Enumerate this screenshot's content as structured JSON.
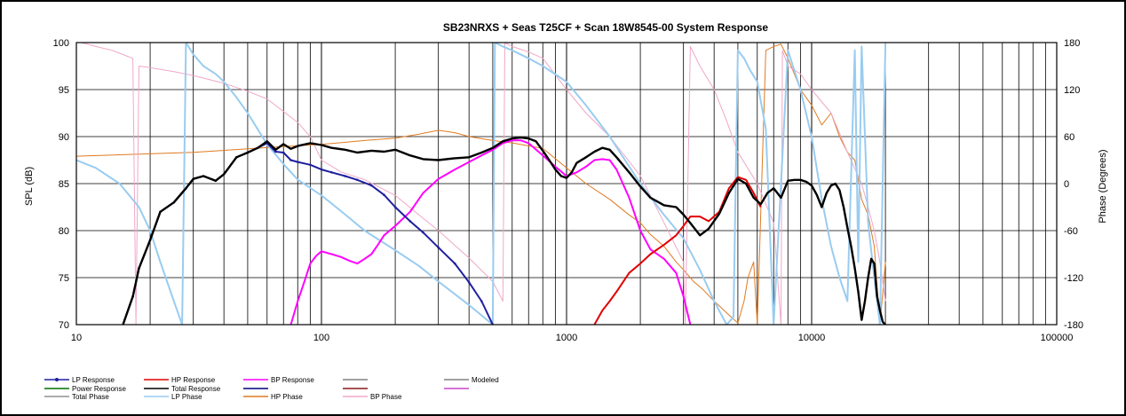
{
  "chart_data": {
    "type": "line",
    "title": "SB23NRXS  + Seas T25CF + Scan 18W8545-00   System Response",
    "xlabel": "",
    "ylabel": "SPL (dB)",
    "y2label": "Phase (Degrees)",
    "xscale": "log",
    "xlim": [
      10,
      100000
    ],
    "ylim": [
      70,
      100
    ],
    "y2lim": [
      -180,
      180
    ],
    "x_ticks": [
      "10",
      "100",
      "1000",
      "10000",
      "100000"
    ],
    "y_ticks": [
      "70",
      "75",
      "80",
      "85",
      "90",
      "95",
      "100"
    ],
    "y2_ticks": [
      "-180",
      "-120",
      "-60",
      "0",
      "60",
      "120",
      "180"
    ],
    "grid": true,
    "legend_position": "bottom",
    "legend": [
      {
        "label": "LP Response",
        "color": "#1f1fa0",
        "marker": true
      },
      {
        "label": "HP Response",
        "color": "#e00000"
      },
      {
        "label": "BP Response",
        "color": "#ff00ff"
      },
      {
        "label": "",
        "color": "#808080"
      },
      {
        "label": "Modeled",
        "color": "#808080"
      },
      {
        "label": "Power Response",
        "color": "#007000"
      },
      {
        "label": "Total Response",
        "color": "#000000"
      },
      {
        "label": "",
        "color": "#000080"
      },
      {
        "label": "",
        "color": "#8b1a1a"
      },
      {
        "label": "",
        "color": "#cc44cc"
      },
      {
        "label": "Total Phase",
        "color": "#909090"
      },
      {
        "label": "LP Phase",
        "color": "#99ccf0"
      },
      {
        "label": "HP Phase",
        "color": "#e07a20"
      },
      {
        "label": "BP Phase",
        "color": "#f0a8c8"
      }
    ],
    "series": [
      {
        "name": "Total Response",
        "axis": "left",
        "color": "#000000",
        "width": 2.4,
        "x": [
          15.5,
          17,
          18,
          20,
          22,
          25,
          28,
          30,
          33,
          37,
          40,
          45,
          50,
          55,
          60,
          65,
          70,
          75,
          80,
          90,
          100,
          110,
          125,
          140,
          160,
          180,
          200,
          230,
          260,
          300,
          350,
          400,
          450,
          500,
          550,
          600,
          650,
          700,
          750,
          800,
          850,
          900,
          950,
          1000,
          1050,
          1100,
          1200,
          1300,
          1400,
          1500,
          1600,
          1800,
          2000,
          2200,
          2500,
          2800,
          3000,
          3200,
          3500,
          3800,
          4200,
          4600,
          5000,
          5400,
          5800,
          6200,
          6600,
          7000,
          7500,
          8000,
          8500,
          9000,
          9500,
          10000,
          10500,
          11000,
          11500,
          12000,
          12500,
          13000,
          13500,
          14000,
          14500,
          15000,
          15500,
          16000,
          16500,
          17000,
          17500,
          18000,
          18500,
          19000,
          19500,
          20000
        ],
        "y": [
          70,
          73,
          76,
          79,
          82,
          83,
          84.5,
          85.5,
          85.8,
          85.3,
          86,
          87.8,
          88.3,
          88.8,
          89.5,
          88.6,
          89.2,
          88.7,
          89,
          89.3,
          89.1,
          88.8,
          88.6,
          88.3,
          88.5,
          88.4,
          88.6,
          88,
          87.6,
          87.5,
          87.7,
          87.8,
          88.3,
          88.8,
          89.5,
          89.8,
          89.9,
          89.8,
          89.5,
          88.5,
          87.5,
          86.5,
          85.8,
          85.6,
          86.2,
          87.2,
          87.8,
          88.4,
          88.8,
          88.6,
          87.8,
          86.2,
          84.7,
          83.5,
          82.7,
          82.5,
          81.7,
          80.8,
          79.5,
          80.2,
          81.8,
          84,
          85.5,
          85,
          83.5,
          82.8,
          84,
          84.5,
          83.5,
          85.3,
          85.4,
          85.4,
          85.2,
          84.8,
          83.8,
          82.5,
          84,
          84.8,
          85,
          84.3,
          82.5,
          80.3,
          78.3,
          76,
          73.5,
          70.5,
          72.5,
          75,
          77,
          76.5,
          73,
          71.5,
          70.3,
          70
        ]
      },
      {
        "name": "LP Response",
        "axis": "left",
        "color": "#1f1fa0",
        "width": 2,
        "x": [
          15.5,
          17,
          18,
          20,
          22,
          25,
          28,
          30,
          33,
          37,
          40,
          45,
          50,
          55,
          60,
          65,
          70,
          75,
          80,
          90,
          100,
          110,
          125,
          140,
          160,
          180,
          200,
          230,
          260,
          300,
          350,
          400,
          450,
          500
        ],
        "y": [
          70,
          73,
          76,
          79,
          82,
          83,
          84.5,
          85.5,
          85.8,
          85.3,
          86,
          87.8,
          88.3,
          88.8,
          89.3,
          88.4,
          88.3,
          87.5,
          87.3,
          87,
          86.5,
          86.2,
          85.8,
          85.4,
          84.8,
          83.8,
          82.5,
          81,
          79.8,
          78.2,
          76.5,
          74.5,
          72.5,
          70
        ]
      },
      {
        "name": "BP Response",
        "axis": "left",
        "color": "#ff00ff",
        "width": 2,
        "x": [
          75,
          80,
          85,
          90,
          95,
          100,
          110,
          120,
          130,
          140,
          150,
          160,
          170,
          180,
          200,
          230,
          260,
          300,
          350,
          400,
          450,
          500,
          550,
          600,
          650,
          700,
          800,
          900,
          1000,
          1100,
          1200,
          1300,
          1400,
          1500,
          1600,
          1800,
          2000,
          2200,
          2500,
          2800,
          3000,
          3200
        ],
        "y": [
          70,
          72.5,
          74.5,
          76.5,
          77.3,
          77.8,
          77.5,
          77.2,
          76.8,
          76.5,
          77,
          77.5,
          78.5,
          79.5,
          80.5,
          82,
          84,
          85.5,
          86.5,
          87.3,
          88,
          88.6,
          89.3,
          89.6,
          89.6,
          89.3,
          88,
          86.8,
          85.8,
          86.2,
          86.8,
          87.5,
          87.6,
          87.5,
          86.5,
          83.5,
          80,
          78,
          77,
          75.5,
          73,
          70
        ]
      },
      {
        "name": "HP Response",
        "axis": "left",
        "color": "#e00000",
        "width": 2,
        "x": [
          1300,
          1400,
          1500,
          1600,
          1800,
          2000,
          2200,
          2500,
          2800,
          3000,
          3200,
          3500,
          3800,
          4200,
          4600,
          5000,
          5400,
          5800,
          6200
        ],
        "y": [
          70,
          71.5,
          72.5,
          73.5,
          75.5,
          76.5,
          77.5,
          78.5,
          79.5,
          80.5,
          81.5,
          81.5,
          81,
          82,
          84.5,
          85.7,
          85.4,
          84,
          82.5
        ]
      },
      {
        "name": "HP Phase",
        "axis": "right",
        "color": "#e07a20",
        "width": 1,
        "x": [
          10,
          30,
          60,
          100,
          150,
          200,
          250,
          300,
          350,
          400,
          500,
          600,
          800,
          1000,
          1200,
          1500,
          1800,
          2000,
          2200,
          2500,
          2800,
          3000,
          3300,
          3600,
          4000,
          4500,
          5000,
          5300,
          5500,
          5800,
          6000,
          6500,
          7000,
          7500,
          8000,
          8500,
          9000,
          10000,
          11000,
          12000,
          13000,
          14000,
          15000,
          16000,
          17000,
          18000,
          19000,
          20000
        ],
        "y": [
          35,
          40,
          46,
          50,
          55,
          58,
          63,
          68,
          65,
          60,
          55,
          52,
          45,
          20,
          0,
          -20,
          -40,
          -50,
          -65,
          -80,
          -100,
          -110,
          -125,
          -135,
          -150,
          -165,
          -178,
          -150,
          -120,
          -100,
          -180,
          170,
          175,
          178,
          160,
          140,
          120,
          100,
          75,
          90,
          60,
          40,
          30,
          -20,
          -40,
          -80,
          -180,
          -100
        ]
      },
      {
        "name": "LP Phase",
        "axis": "right",
        "color": "#99ccf0",
        "width": 2,
        "x": [
          10,
          12,
          15,
          18,
          20,
          22,
          25,
          27,
          28,
          30,
          33,
          37,
          40,
          45,
          50,
          60,
          70,
          80,
          100,
          120,
          150,
          200,
          250,
          300,
          400,
          500,
          510,
          550,
          600,
          700,
          800,
          1000,
          1200,
          1500,
          2000,
          2500,
          3000,
          3500,
          4000,
          4500,
          4800,
          5000,
          5300,
          5600,
          6000,
          6500,
          7000,
          8000,
          9000,
          10000,
          11000,
          12000,
          13000,
          14000,
          15000,
          15500,
          16000,
          17000,
          18000,
          19000,
          20000
        ],
        "y": [
          30,
          20,
          0,
          -30,
          -60,
          -100,
          -150,
          -180,
          180,
          165,
          150,
          140,
          130,
          110,
          90,
          50,
          25,
          5,
          -15,
          -35,
          -60,
          -85,
          -105,
          -125,
          -155,
          -180,
          180,
          175,
          170,
          160,
          150,
          130,
          100,
          60,
          0,
          -40,
          -70,
          -110,
          -150,
          -180,
          -170,
          170,
          160,
          145,
          130,
          70,
          -180,
          170,
          120,
          60,
          -20,
          -80,
          -120,
          -150,
          170,
          -100,
          175,
          -50,
          -120,
          -180,
          180
        ]
      },
      {
        "name": "BP Phase",
        "axis": "right",
        "color": "#f0a8c8",
        "width": 1,
        "x": [
          10.5,
          12,
          14,
          16,
          17,
          17.5,
          18,
          20,
          25,
          30,
          40,
          50,
          60,
          70,
          80,
          90,
          100,
          120,
          150,
          200,
          250,
          300,
          400,
          500,
          550,
          560,
          600,
          700,
          800,
          1000,
          1200,
          1500,
          2000,
          2500,
          3000,
          3050,
          3200,
          3500,
          4000,
          4500,
          5000,
          6000,
          7000,
          7500,
          7600,
          8000,
          9000,
          10000,
          12000,
          14000,
          16000,
          17000,
          18000,
          19000,
          20000
        ],
        "y": [
          180,
          175,
          170,
          163,
          160,
          -180,
          150,
          148,
          143,
          138,
          128,
          118,
          108,
          92,
          78,
          60,
          30,
          15,
          5,
          -15,
          -40,
          -60,
          -95,
          -125,
          -150,
          180,
          175,
          168,
          160,
          120,
          90,
          60,
          10,
          -50,
          -100,
          -180,
          175,
          150,
          120,
          80,
          40,
          0,
          -50,
          -180,
          170,
          150,
          140,
          120,
          90,
          40,
          0,
          -30,
          -60,
          -100,
          -150
        ]
      }
    ]
  }
}
